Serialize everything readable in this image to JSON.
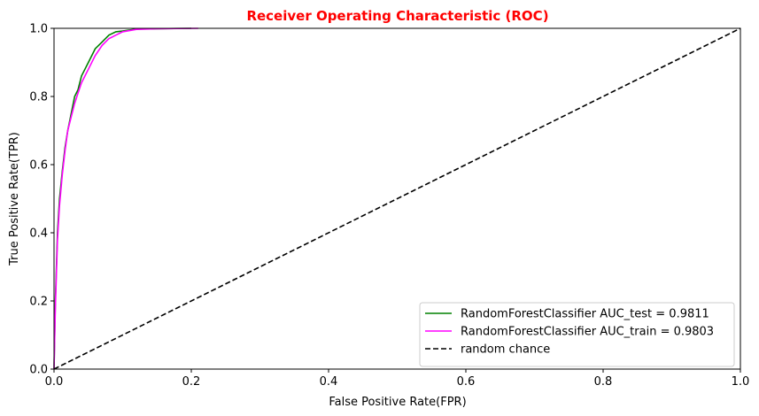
{
  "chart_data": {
    "type": "line",
    "title": "Receiver Operating Characteristic (ROC)",
    "title_color": "#ff0000",
    "xlabel": "False Positive Rate(FPR)",
    "ylabel": "True Positive Rate(TPR)",
    "xlim": [
      0,
      1
    ],
    "ylim": [
      0,
      1
    ],
    "xticks": [
      0.0,
      0.2,
      0.4,
      0.6,
      0.8,
      1.0
    ],
    "yticks": [
      0.0,
      0.2,
      0.4,
      0.6,
      0.8,
      1.0
    ],
    "xtick_labels": [
      "0.0",
      "0.2",
      "0.4",
      "0.6",
      "0.8",
      "1.0"
    ],
    "ytick_labels": [
      "0.0",
      "0.2",
      "0.4",
      "0.6",
      "0.8",
      "1.0"
    ],
    "grid": false,
    "legend_position": "bottom-right",
    "series": [
      {
        "name": "RandomForestClassifier AUC_test = 0.9811",
        "color": "#008000",
        "style": "solid",
        "x": [
          0,
          0.002,
          0.005,
          0.008,
          0.012,
          0.016,
          0.02,
          0.025,
          0.03,
          0.035,
          0.04,
          0.045,
          0.05,
          0.06,
          0.07,
          0.08,
          0.09,
          0.1,
          0.12,
          0.15,
          0.2
        ],
        "y": [
          0,
          0.2,
          0.4,
          0.5,
          0.58,
          0.65,
          0.7,
          0.75,
          0.8,
          0.82,
          0.86,
          0.88,
          0.9,
          0.94,
          0.96,
          0.98,
          0.99,
          0.992,
          0.998,
          0.999,
          1.0
        ]
      },
      {
        "name": "RandomForestClassifier AUC_train = 0.9803",
        "color": "#ff00ff",
        "style": "solid",
        "x": [
          0,
          0.002,
          0.005,
          0.008,
          0.012,
          0.016,
          0.02,
          0.025,
          0.03,
          0.035,
          0.04,
          0.045,
          0.05,
          0.06,
          0.07,
          0.08,
          0.09,
          0.1,
          0.12,
          0.15,
          0.21
        ],
        "y": [
          0,
          0.18,
          0.38,
          0.48,
          0.57,
          0.64,
          0.7,
          0.74,
          0.78,
          0.81,
          0.84,
          0.86,
          0.88,
          0.92,
          0.95,
          0.97,
          0.98,
          0.99,
          0.997,
          0.999,
          1.0
        ]
      },
      {
        "name": "random chance",
        "color": "#000000",
        "style": "dashed",
        "x": [
          0,
          1
        ],
        "y": [
          0,
          1
        ]
      }
    ]
  }
}
